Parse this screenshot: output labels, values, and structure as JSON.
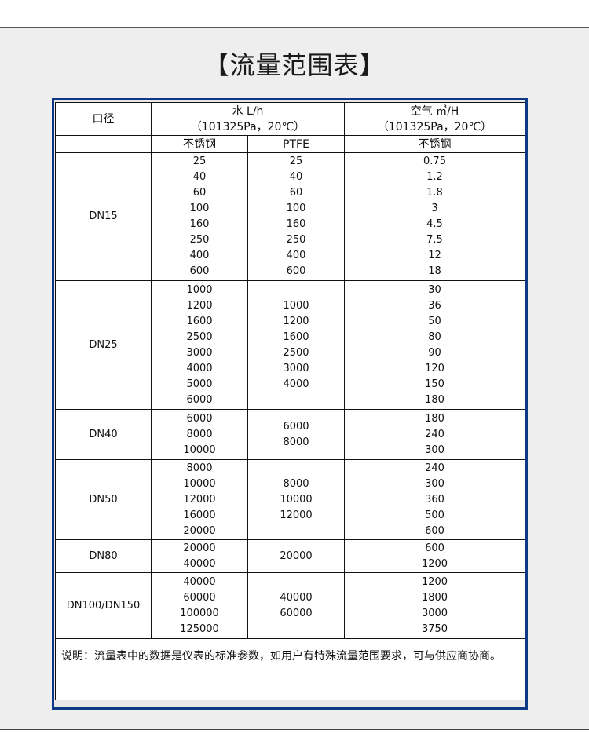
{
  "title": "【流量范围表】",
  "header": {
    "caliber": "口径",
    "water": "水 L/h",
    "water_cond": "（101325Pa，20℃）",
    "air": "空气 ㎥/H",
    "air_cond": "（101325Pa，20℃）",
    "sub": [
      "不锈钢",
      "PTFE",
      "不锈钢"
    ]
  },
  "rows": [
    {
      "dn": "DN15",
      "ss": [
        "25",
        "40",
        "60",
        "100",
        "160",
        "250",
        "400",
        "600"
      ],
      "ptfe": [
        "25",
        "40",
        "60",
        "100",
        "160",
        "250",
        "400",
        "600"
      ],
      "air": [
        "0.75",
        "1.2",
        "1.8",
        "3",
        "4.5",
        "7.5",
        "12",
        "18"
      ]
    },
    {
      "dn": "DN25",
      "ss": [
        "1000",
        "1200",
        "1600",
        "2500",
        "3000",
        "4000",
        "5000",
        "6000"
      ],
      "ptfe": [
        "1000",
        "1200",
        "1600",
        "2500",
        "3000",
        "4000"
      ],
      "air": [
        "30",
        "36",
        "50",
        "80",
        "90",
        "120",
        "150",
        "180"
      ]
    },
    {
      "dn": "DN40",
      "ss": [
        "6000",
        "8000",
        "10000"
      ],
      "ptfe": [
        "6000",
        "8000"
      ],
      "air": [
        "180",
        "240",
        "300"
      ]
    },
    {
      "dn": "DN50",
      "ss": [
        "8000",
        "10000",
        "12000",
        "16000",
        "20000"
      ],
      "ptfe": [
        "8000",
        "10000",
        "12000"
      ],
      "air": [
        "240",
        "300",
        "360",
        "500",
        "600"
      ]
    },
    {
      "dn": "DN80",
      "ss": [
        "20000",
        "40000"
      ],
      "ptfe": [
        "20000"
      ],
      "air": [
        "600",
        "1200"
      ]
    },
    {
      "dn": "DN100/DN150",
      "ss": [
        "40000",
        "60000",
        "100000",
        "125000"
      ],
      "ptfe": [
        "40000",
        "60000"
      ],
      "air": [
        "1200",
        "1800",
        "3000",
        "3750"
      ]
    }
  ],
  "note": "说明：流量表中的数据是仪表的标准参数，如用户有特殊流量范围要求，可与供应商协商。"
}
